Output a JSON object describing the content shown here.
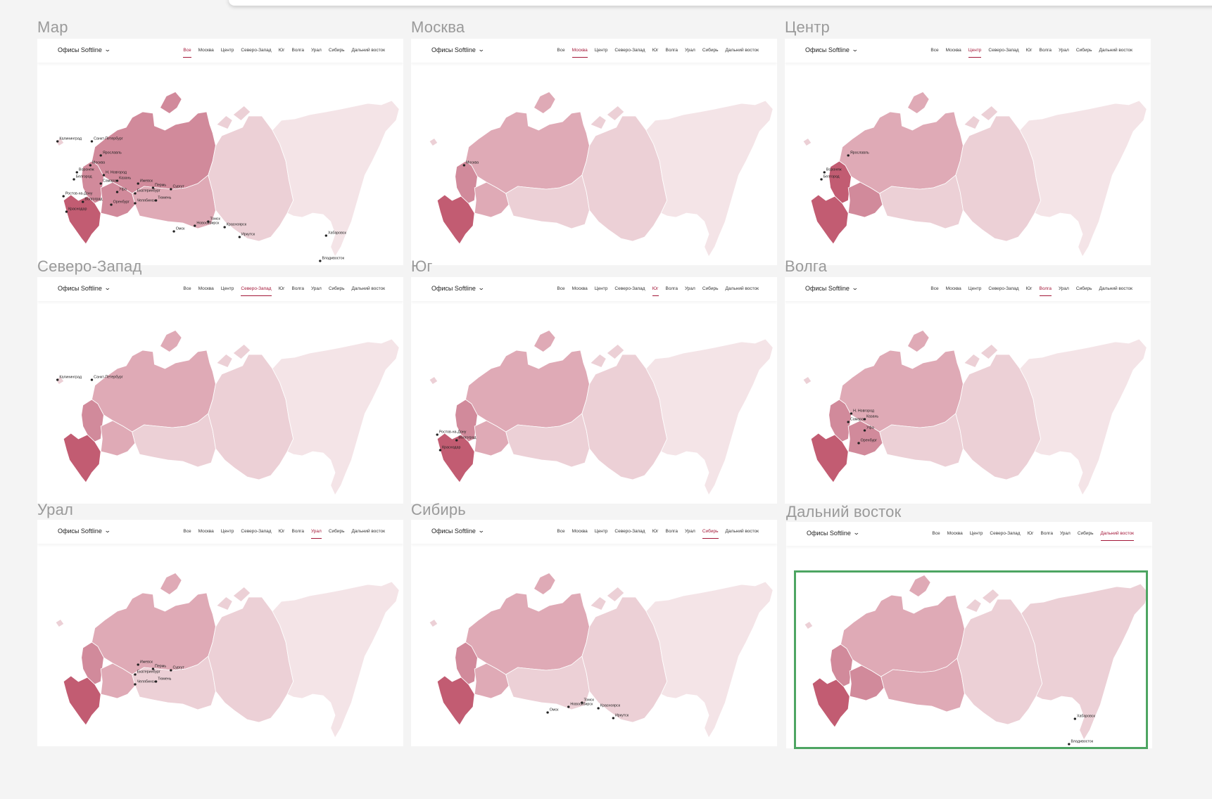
{
  "dropdown_label": "Офисы Softline",
  "tabs": [
    "Все",
    "Москва",
    "Центр",
    "Северо-Запад",
    "Юг",
    "Волга",
    "Урал",
    "Сибирь",
    "Дальний восток"
  ],
  "colors": {
    "accent": "#a31738",
    "highlight_border": "#4da562",
    "shade_dark": "#c25c72",
    "shade_mid": "#d18a9b",
    "shade_light": "#dfaab6",
    "shade_pale": "#ecd0d6",
    "shade_faint": "#f4e4e7"
  },
  "frames": [
    {
      "title": "Мар",
      "active_tab": 0,
      "region_shades": [
        "dark",
        "mid",
        "mid",
        "mid",
        "light",
        "pale",
        "faint"
      ],
      "cities": [
        {
          "name": "Калининград"
        },
        {
          "name": "Санкт-Петербург"
        },
        {
          "name": "Ярославль"
        },
        {
          "name": "Москва"
        },
        {
          "name": "Воронеж"
        },
        {
          "name": "Белгород"
        },
        {
          "name": "Н. Новгород"
        },
        {
          "name": "Самара"
        },
        {
          "name": "Казань"
        },
        {
          "name": "Ижевск"
        },
        {
          "name": "Пермь"
        },
        {
          "name": "Сургут"
        },
        {
          "name": "Уфа"
        },
        {
          "name": "Екатеринбург"
        },
        {
          "name": "Ростов-на-Дону"
        },
        {
          "name": "Волгоград"
        },
        {
          "name": "Краснодар"
        },
        {
          "name": "Оренбург"
        },
        {
          "name": "Челябинск"
        },
        {
          "name": "Тюмень"
        },
        {
          "name": "Омск"
        },
        {
          "name": "Новосибирск"
        },
        {
          "name": "Томск"
        },
        {
          "name": "Красноярск"
        },
        {
          "name": "Иркутск"
        },
        {
          "name": "Хабаровск"
        },
        {
          "name": "Владивосток"
        }
      ]
    },
    {
      "title": "Москва",
      "active_tab": 1,
      "region_shades": [
        "dark",
        "mid",
        "light",
        "light",
        "pale",
        "pale",
        "faint"
      ],
      "cities": [
        {
          "name": "Москва"
        }
      ]
    },
    {
      "title": "Центр",
      "active_tab": 2,
      "region_shades": [
        "dark",
        "dark",
        "mid",
        "light",
        "pale",
        "pale",
        "faint"
      ],
      "cities": [
        {
          "name": "Ярославль"
        },
        {
          "name": "Воронеж"
        },
        {
          "name": "Белгород"
        }
      ]
    },
    {
      "title": "Северо-Запад",
      "active_tab": 3,
      "region_shades": [
        "dark",
        "mid",
        "light",
        "light",
        "pale",
        "pale",
        "faint"
      ],
      "cities": [
        {
          "name": "Калининград"
        },
        {
          "name": "Санкт-Петербург"
        }
      ]
    },
    {
      "title": "Юг",
      "active_tab": 4,
      "region_shades": [
        "dark",
        "mid",
        "light",
        "light",
        "pale",
        "pale",
        "faint"
      ],
      "cities": [
        {
          "name": "Ростов-на-Дону"
        },
        {
          "name": "Волгоград"
        },
        {
          "name": "Краснодар"
        }
      ]
    },
    {
      "title": "Волга",
      "active_tab": 5,
      "region_shades": [
        "dark",
        "mid",
        "mid",
        "light",
        "pale",
        "pale",
        "faint"
      ],
      "cities": [
        {
          "name": "Н. Новгород"
        },
        {
          "name": "Самара"
        },
        {
          "name": "Казань"
        },
        {
          "name": "Уфа"
        },
        {
          "name": "Оренбург"
        }
      ]
    },
    {
      "title": "Урал",
      "active_tab": 6,
      "region_shades": [
        "dark",
        "mid",
        "light",
        "light",
        "pale",
        "pale",
        "faint"
      ],
      "cities": [
        {
          "name": "Ижевск"
        },
        {
          "name": "Пермь"
        },
        {
          "name": "Сургут"
        },
        {
          "name": "Екатеринбург"
        },
        {
          "name": "Челябинск"
        },
        {
          "name": "Тюмень"
        }
      ]
    },
    {
      "title": "Сибирь",
      "active_tab": 7,
      "region_shades": [
        "dark",
        "mid",
        "light",
        "light",
        "pale",
        "pale",
        "faint"
      ],
      "cities": [
        {
          "name": "Омск"
        },
        {
          "name": "Новосибирск"
        },
        {
          "name": "Томск"
        },
        {
          "name": "Красноярск"
        },
        {
          "name": "Иркутск"
        }
      ]
    },
    {
      "title": "Дальний восток",
      "active_tab": 8,
      "region_shades": [
        "dark",
        "mid",
        "mid",
        "light",
        "light",
        "pale",
        "pale"
      ],
      "cities": [
        {
          "name": "Хабаровск"
        },
        {
          "name": "Владивосток"
        }
      ],
      "highlighted": true
    }
  ]
}
